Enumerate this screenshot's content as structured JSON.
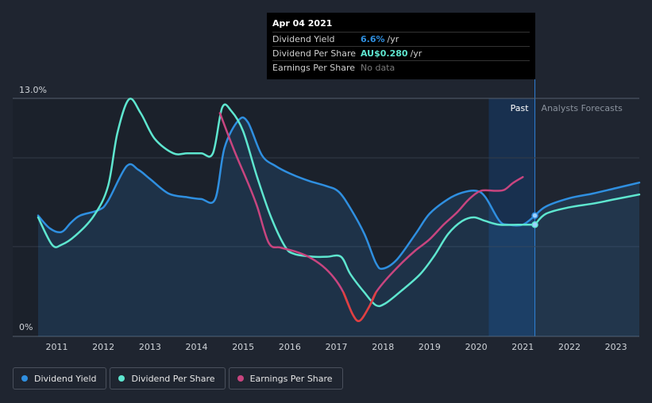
{
  "chart_data": {
    "type": "line",
    "ylim": [
      0,
      13.0
    ],
    "xlim": [
      2010.6,
      2023.5
    ],
    "y_tick_labels": [
      {
        "value": 13.0,
        "label": "13.0%"
      },
      {
        "value": 0,
        "label": "0%"
      }
    ],
    "x_tick_labels": [
      "2011",
      "2012",
      "2013",
      "2014",
      "2015",
      "2016",
      "2017",
      "2018",
      "2019",
      "2020",
      "2021",
      "2022",
      "2023"
    ],
    "past_divider": 2021.26,
    "forecast_shade_start": 2020.27,
    "regions": {
      "past": "Past",
      "forecast": "Analysts Forecasts"
    },
    "series": [
      {
        "name": "Dividend Yield",
        "color": "#2f8fe0",
        "points": [
          [
            2010.6,
            6.6
          ],
          [
            2010.85,
            5.9
          ],
          [
            2011.1,
            5.7
          ],
          [
            2011.3,
            6.2
          ],
          [
            2011.5,
            6.6
          ],
          [
            2011.9,
            6.9
          ],
          [
            2012.1,
            7.4
          ],
          [
            2012.5,
            9.3
          ],
          [
            2012.75,
            9.1
          ],
          [
            2013.0,
            8.6
          ],
          [
            2013.4,
            7.8
          ],
          [
            2013.8,
            7.6
          ],
          [
            2014.1,
            7.5
          ],
          [
            2014.4,
            7.5
          ],
          [
            2014.6,
            10.3
          ],
          [
            2014.9,
            11.8
          ],
          [
            2015.1,
            11.7
          ],
          [
            2015.4,
            9.9
          ],
          [
            2015.7,
            9.3
          ],
          [
            2016.0,
            8.9
          ],
          [
            2016.4,
            8.5
          ],
          [
            2016.8,
            8.2
          ],
          [
            2017.05,
            7.9
          ],
          [
            2017.3,
            7.0
          ],
          [
            2017.6,
            5.6
          ],
          [
            2017.85,
            4.0
          ],
          [
            2018.0,
            3.7
          ],
          [
            2018.3,
            4.2
          ],
          [
            2018.7,
            5.6
          ],
          [
            2019.0,
            6.7
          ],
          [
            2019.4,
            7.5
          ],
          [
            2019.7,
            7.85
          ],
          [
            2020.0,
            7.95
          ],
          [
            2020.2,
            7.6
          ],
          [
            2020.5,
            6.3
          ],
          [
            2020.7,
            6.1
          ],
          [
            2021.0,
            6.1
          ],
          [
            2021.26,
            6.6
          ]
        ]
      },
      {
        "name": "Dividend Per Share",
        "color": "#5ee6cf",
        "points": [
          [
            2010.6,
            6.5
          ],
          [
            2010.9,
            5.0
          ],
          [
            2011.1,
            5.0
          ],
          [
            2011.4,
            5.5
          ],
          [
            2011.8,
            6.6
          ],
          [
            2012.1,
            8.2
          ],
          [
            2012.3,
            11.1
          ],
          [
            2012.55,
            12.95
          ],
          [
            2012.8,
            12.2
          ],
          [
            2013.1,
            10.8
          ],
          [
            2013.5,
            10.0
          ],
          [
            2013.8,
            10.0
          ],
          [
            2014.1,
            10.0
          ],
          [
            2014.35,
            10.0
          ],
          [
            2014.55,
            12.5
          ],
          [
            2014.75,
            12.3
          ],
          [
            2015.0,
            11.2
          ],
          [
            2015.3,
            8.7
          ],
          [
            2015.6,
            6.5
          ],
          [
            2015.9,
            4.9
          ],
          [
            2016.1,
            4.5
          ],
          [
            2016.5,
            4.35
          ],
          [
            2016.8,
            4.35
          ],
          [
            2017.1,
            4.35
          ],
          [
            2017.3,
            3.4
          ],
          [
            2017.6,
            2.4
          ],
          [
            2017.85,
            1.7
          ],
          [
            2018.05,
            1.8
          ],
          [
            2018.4,
            2.5
          ],
          [
            2018.8,
            3.4
          ],
          [
            2019.1,
            4.4
          ],
          [
            2019.4,
            5.6
          ],
          [
            2019.7,
            6.3
          ],
          [
            2019.95,
            6.5
          ],
          [
            2020.2,
            6.3
          ],
          [
            2020.5,
            6.1
          ],
          [
            2020.9,
            6.1
          ],
          [
            2021.26,
            6.1
          ]
        ]
      },
      {
        "name": "Earnings Per Share",
        "color": "#c8457f",
        "points": [
          [
            2014.5,
            12.2
          ],
          [
            2014.8,
            10.2
          ],
          [
            2015.1,
            8.4
          ],
          [
            2015.3,
            7.1
          ],
          [
            2015.55,
            5.1
          ],
          [
            2015.8,
            4.85
          ],
          [
            2016.1,
            4.65
          ],
          [
            2016.4,
            4.35
          ],
          [
            2016.7,
            3.85
          ],
          [
            2016.95,
            3.2
          ],
          [
            2017.15,
            2.4
          ],
          [
            2017.35,
            1.2
          ],
          [
            2017.5,
            0.85
          ],
          [
            2017.7,
            1.6
          ],
          [
            2017.85,
            2.4
          ],
          [
            2018.1,
            3.2
          ],
          [
            2018.4,
            4.0
          ],
          [
            2018.7,
            4.7
          ],
          [
            2019.0,
            5.3
          ],
          [
            2019.3,
            6.1
          ],
          [
            2019.6,
            6.8
          ],
          [
            2019.85,
            7.5
          ],
          [
            2020.1,
            7.95
          ],
          [
            2020.4,
            7.95
          ],
          [
            2020.6,
            8.0
          ],
          [
            2020.8,
            8.4
          ],
          [
            2021.0,
            8.7
          ]
        ]
      }
    ],
    "forecast_series": [
      {
        "name": "Dividend Yield",
        "color": "#2f8fe0",
        "points": [
          [
            2021.26,
            6.6
          ],
          [
            2021.5,
            7.1
          ],
          [
            2022.0,
            7.55
          ],
          [
            2022.5,
            7.8
          ],
          [
            2023.0,
            8.1
          ],
          [
            2023.5,
            8.4
          ]
        ]
      },
      {
        "name": "Dividend Per Share",
        "color": "#5ee6cf",
        "points": [
          [
            2021.26,
            6.1
          ],
          [
            2021.5,
            6.7
          ],
          [
            2022.0,
            7.05
          ],
          [
            2022.5,
            7.25
          ],
          [
            2023.0,
            7.5
          ],
          [
            2023.5,
            7.75
          ]
        ]
      }
    ]
  },
  "tooltip": {
    "date": "Apr 04 2021",
    "rows": [
      {
        "label": "Dividend Yield",
        "value": "6.6%",
        "unit": "/yr",
        "color": "#2f8fe0"
      },
      {
        "label": "Dividend Per Share",
        "value": "AU$0.280",
        "unit": "/yr",
        "color": "#5ee6cf"
      },
      {
        "label": "Earnings Per Share",
        "nodata": "No data"
      }
    ]
  },
  "legend": [
    {
      "label": "Dividend Yield",
      "color": "#2f8fe0"
    },
    {
      "label": "Dividend Per Share",
      "color": "#5ee6cf"
    },
    {
      "label": "Earnings Per Share",
      "color": "#c8457f"
    }
  ]
}
